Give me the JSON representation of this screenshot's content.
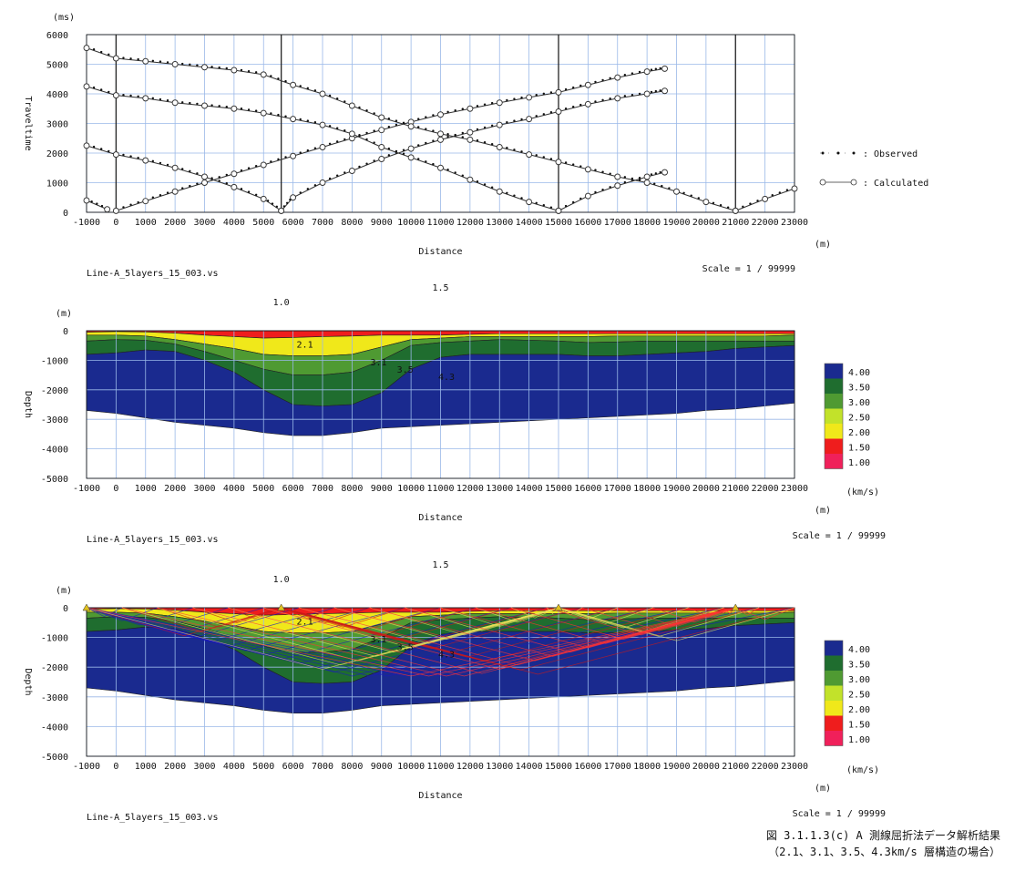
{
  "chart_data": [
    {
      "type": "line",
      "ylabel_unit": "(ms)",
      "xlabel": "Distance",
      "x_unit": "(m)",
      "ylabel": "Traveltime",
      "xlim": [
        -1000,
        23000
      ],
      "ylim": [
        0,
        6000
      ],
      "x_ticks": [
        "-1000",
        "0",
        "1000",
        "2000",
        "3000",
        "4000",
        "5000",
        "6000",
        "7000",
        "8000",
        "9000",
        "10000",
        "11000",
        "12000",
        "13000",
        "14000",
        "15000",
        "16000",
        "17000",
        "18000",
        "19000",
        "20000",
        "21000",
        "22000",
        "23000"
      ],
      "y_ticks": [
        "0",
        "1000",
        "2000",
        "3000",
        "4000",
        "5000",
        "6000"
      ],
      "file_label": "Line-A_5layers_15_003.vs",
      "scale": "Scale = 1 / 99999",
      "legend": [
        {
          "name": "Observed",
          "label": "･ ･ ･ : Observed"
        },
        {
          "name": "Calculated",
          "label": ": Calculated"
        }
      ],
      "shots": [
        0,
        5600,
        15000,
        21000
      ],
      "series": [
        {
          "name": "shot0-forward",
          "x": [
            0,
            1000,
            2000,
            3000,
            4000,
            5000,
            6000,
            7000,
            8000,
            9000,
            10000,
            11000,
            12000,
            13000,
            14000,
            15000,
            16000,
            17000,
            18000,
            18600
          ],
          "y": [
            50,
            380,
            700,
            1000,
            1300,
            1600,
            1900,
            2200,
            2500,
            2780,
            3050,
            3300,
            3500,
            3700,
            3880,
            4050,
            4300,
            4550,
            4750,
            4850
          ]
        },
        {
          "name": "shot0-reverse",
          "x": [
            -1000,
            -300
          ],
          "y": [
            400,
            100
          ]
        },
        {
          "name": "shot5600-forward",
          "x": [
            5600,
            6000,
            7000,
            8000,
            9000,
            10000,
            11000,
            12000,
            13000,
            14000,
            15000,
            16000,
            17000,
            18000,
            18600
          ],
          "y": [
            50,
            500,
            1000,
            1400,
            1800,
            2150,
            2450,
            2700,
            2950,
            3150,
            3400,
            3650,
            3850,
            4000,
            4100
          ]
        },
        {
          "name": "shot5600-reverse",
          "x": [
            -1000,
            0,
            1000,
            2000,
            3000,
            4000,
            5000,
            5600
          ],
          "y": [
            2250,
            1950,
            1750,
            1500,
            1200,
            850,
            450,
            50
          ]
        },
        {
          "name": "shot15000-reverse",
          "x": [
            -1000,
            0,
            1000,
            2000,
            3000,
            4000,
            5000,
            6000,
            7000,
            8000,
            9000,
            10000,
            11000,
            12000,
            13000,
            14000,
            15000
          ],
          "y": [
            4250,
            3950,
            3850,
            3700,
            3600,
            3500,
            3350,
            3150,
            2950,
            2650,
            2200,
            1850,
            1500,
            1100,
            700,
            350,
            50
          ]
        },
        {
          "name": "shot15000-forward",
          "x": [
            15000,
            16000,
            17000,
            18000,
            18600
          ],
          "y": [
            50,
            550,
            900,
            1200,
            1350
          ]
        },
        {
          "name": "shot21000-reverse",
          "x": [
            -1000,
            0,
            1000,
            2000,
            3000,
            4000,
            5000,
            6000,
            7000,
            8000,
            9000,
            10000,
            11000,
            12000,
            13000,
            14000,
            15000,
            16000,
            17000,
            18000,
            19000,
            20000,
            21000
          ],
          "y": [
            5550,
            5200,
            5100,
            5000,
            4900,
            4800,
            4650,
            4300,
            4000,
            3600,
            3200,
            2900,
            2650,
            2450,
            2200,
            1950,
            1700,
            1450,
            1200,
            1000,
            700,
            350,
            50
          ]
        },
        {
          "name": "shot21000-forward",
          "x": [
            21000,
            22000,
            23000
          ],
          "y": [
            50,
            450,
            800
          ]
        }
      ]
    },
    {
      "type": "area",
      "ylabel_unit": "(m)",
      "xlabel": "Distance",
      "x_unit": "(m)",
      "ylabel": "Depth",
      "xlim": [
        -1000,
        23000
      ],
      "ylim": [
        -5000,
        0
      ],
      "x_ticks": [
        "-1000",
        "0",
        "1000",
        "2000",
        "3000",
        "4000",
        "5000",
        "6000",
        "7000",
        "8000",
        "9000",
        "10000",
        "11000",
        "12000",
        "13000",
        "14000",
        "15000",
        "16000",
        "17000",
        "18000",
        "19000",
        "20000",
        "21000",
        "22000",
        "23000"
      ],
      "y_ticks": [
        "0",
        "-1000",
        "-2000",
        "-3000",
        "-4000",
        "-5000"
      ],
      "top_labels": [
        {
          "x": 5600,
          "text": "1.0"
        },
        {
          "x": 11000,
          "text": "1.5"
        }
      ],
      "layer_labels": [
        {
          "x": 6400,
          "y": -450,
          "text": "2.1"
        },
        {
          "x": 8900,
          "y": -1050,
          "text": "3.1"
        },
        {
          "x": 9800,
          "y": -1300,
          "text": "3.5"
        },
        {
          "x": 11200,
          "y": -1550,
          "text": "4.3"
        }
      ],
      "file_label": "Line-A_5layers_15_003.vs",
      "scale": "Scale = 1 / 99999",
      "velocity_unit": "(km/s)",
      "colorbar": [
        {
          "label": "4.00",
          "color": "#1a2a8f"
        },
        {
          "label": "3.50",
          "color": "#1f6d2f"
        },
        {
          "label": "3.00",
          "color": "#4f9a32"
        },
        {
          "label": "2.50",
          "color": "#c2e22a"
        },
        {
          "label": "2.00",
          "color": "#f0e81a"
        },
        {
          "label": "1.50",
          "color": "#ef1d1d"
        },
        {
          "label": "1.00",
          "color": "#f0205a"
        }
      ],
      "boundaries": {
        "x": [
          -1000,
          0,
          1000,
          2000,
          3000,
          4000,
          5000,
          6000,
          7000,
          8000,
          9000,
          10000,
          11000,
          12000,
          13000,
          14000,
          15000,
          16000,
          17000,
          18000,
          19000,
          20000,
          21000,
          22000,
          23000
        ],
        "b1": [
          -50,
          -30,
          -40,
          -80,
          -150,
          -200,
          -250,
          -230,
          -200,
          -180,
          -150,
          -150,
          -150,
          -120,
          -100,
          -100,
          -100,
          -100,
          -100,
          -100,
          -100,
          -100,
          -100,
          -100,
          -100
        ],
        "b2": [
          -150,
          -150,
          -180,
          -300,
          -450,
          -600,
          -800,
          -850,
          -850,
          -800,
          -550,
          -300,
          -250,
          -200,
          -200,
          -200,
          -200,
          -200,
          -180,
          -180,
          -180,
          -180,
          -180,
          -180,
          -150
        ],
        "b3": [
          -350,
          -300,
          -320,
          -450,
          -700,
          -1000,
          -1300,
          -1500,
          -1500,
          -1400,
          -1000,
          -500,
          -400,
          -350,
          -300,
          -320,
          -350,
          -400,
          -380,
          -350,
          -350,
          -350,
          -350,
          -350,
          -350
        ],
        "b4": [
          -800,
          -750,
          -650,
          -700,
          -1000,
          -1400,
          -2000,
          -2500,
          -2550,
          -2500,
          -2100,
          -1300,
          -900,
          -800,
          -800,
          -800,
          -800,
          -850,
          -850,
          -800,
          -750,
          -700,
          -600,
          -550,
          -500
        ],
        "b5": [
          -2700,
          -2800,
          -2950,
          -3100,
          -3200,
          -3300,
          -3450,
          -3550,
          -3550,
          -3450,
          -3300,
          -3250,
          -3200,
          -3150,
          -3100,
          -3050,
          -3000,
          -2950,
          -2900,
          -2850,
          -2800,
          -2700,
          -2650,
          -2550,
          -2450
        ]
      }
    },
    {
      "type": "area",
      "ylabel_unit": "(m)",
      "xlabel": "Distance",
      "x_unit": "(m)",
      "ylabel": "Depth",
      "xlim": [
        -1000,
        23000
      ],
      "ylim": [
        -5000,
        0
      ],
      "x_ticks": [
        "-1000",
        "0",
        "1000",
        "2000",
        "3000",
        "4000",
        "5000",
        "6000",
        "7000",
        "8000",
        "9000",
        "10000",
        "11000",
        "12000",
        "13000",
        "14000",
        "15000",
        "16000",
        "17000",
        "18000",
        "19000",
        "20000",
        "21000",
        "22000",
        "23000"
      ],
      "y_ticks": [
        "0",
        "-1000",
        "-2000",
        "-3000",
        "-4000",
        "-5000"
      ],
      "top_labels": [
        {
          "x": 5600,
          "text": "1.0"
        },
        {
          "x": 11000,
          "text": "1.5"
        }
      ],
      "layer_labels": [
        {
          "x": 6400,
          "y": -450,
          "text": "2.1"
        },
        {
          "x": 8900,
          "y": -1050,
          "text": "3.1"
        },
        {
          "x": 9800,
          "y": -1300,
          "text": "3.5"
        },
        {
          "x": 11200,
          "y": -1550,
          "text": "4.3"
        }
      ],
      "file_label": "Line-A_5layers_15_003.vs",
      "scale": "Scale = 1 / 99999",
      "velocity_unit": "(km/s)",
      "raypaths": true
    }
  ],
  "caption": {
    "line1": "図 3.1.1.3(c)  A 測線屈折法データ解析結果",
    "line2": "（2.1、3.1、3.5、4.3km/s 層構造の場合）"
  }
}
